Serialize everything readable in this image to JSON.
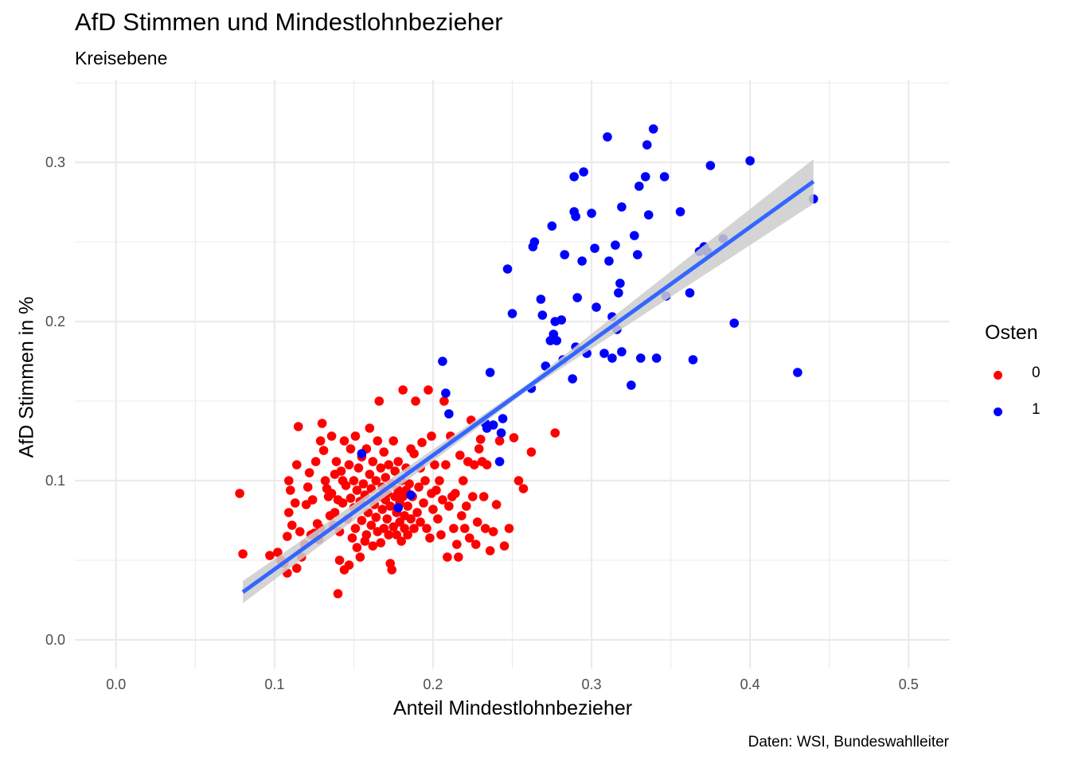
{
  "chart_data": {
    "type": "scatter",
    "title": "AfD Stimmen und Mindestlohnbezieher",
    "subtitle": "Kreisebene",
    "caption": "Daten: WSI, Bundeswahlleiter",
    "xlabel": "Anteil Mindestlohnbezieher",
    "ylabel": "AfD Stimmen in %",
    "xlim": [
      -0.026,
      0.526
    ],
    "ylim": [
      -0.018,
      0.352
    ],
    "xticks": [
      "0.0",
      "0.1",
      "0.2",
      "0.3",
      "0.4",
      "0.5"
    ],
    "yticks": [
      "0.0",
      "0.1",
      "0.2",
      "0.3"
    ],
    "grid": true,
    "legend": {
      "title": "Osten",
      "position": "right",
      "entries": [
        {
          "label": "0",
          "color": "#ff0000"
        },
        {
          "label": "1",
          "color": "#0000ff"
        }
      ]
    },
    "trend": {
      "method": "lm",
      "color": "#3366ff",
      "band_color": "#cccccc",
      "line": [
        [
          0.08,
          0.03
        ],
        [
          0.44,
          0.288
        ]
      ],
      "band_lower": [
        [
          0.08,
          0.023
        ],
        [
          0.26,
          0.157
        ],
        [
          0.44,
          0.274
        ]
      ],
      "band_upper": [
        [
          0.08,
          0.037
        ],
        [
          0.26,
          0.161
        ],
        [
          0.44,
          0.302
        ]
      ]
    },
    "series": [
      {
        "name": "0",
        "color": "#ff0000",
        "points": [
          [
            0.078,
            0.092
          ],
          [
            0.08,
            0.054
          ],
          [
            0.097,
            0.053
          ],
          [
            0.102,
            0.055
          ],
          [
            0.104,
            0.05
          ],
          [
            0.106,
            0.048
          ],
          [
            0.108,
            0.042
          ],
          [
            0.109,
            0.08
          ],
          [
            0.108,
            0.065
          ],
          [
            0.109,
            0.1
          ],
          [
            0.11,
            0.094
          ],
          [
            0.111,
            0.072
          ],
          [
            0.113,
            0.086
          ],
          [
            0.114,
            0.11
          ],
          [
            0.114,
            0.045
          ],
          [
            0.115,
            0.134
          ],
          [
            0.116,
            0.068
          ],
          [
            0.117,
            0.052
          ],
          [
            0.119,
            0.06
          ],
          [
            0.12,
            0.085
          ],
          [
            0.121,
            0.096
          ],
          [
            0.122,
            0.105
          ],
          [
            0.123,
            0.066
          ],
          [
            0.124,
            0.088
          ],
          [
            0.125,
            0.067
          ],
          [
            0.126,
            0.112
          ],
          [
            0.127,
            0.073
          ],
          [
            0.128,
            0.063
          ],
          [
            0.129,
            0.07
          ],
          [
            0.129,
            0.125
          ],
          [
            0.13,
            0.136
          ],
          [
            0.131,
            0.119
          ],
          [
            0.132,
            0.1
          ],
          [
            0.133,
            0.095
          ],
          [
            0.134,
            0.09
          ],
          [
            0.135,
            0.078
          ],
          [
            0.136,
            0.092
          ],
          [
            0.136,
            0.128
          ],
          [
            0.137,
            0.072
          ],
          [
            0.138,
            0.08
          ],
          [
            0.138,
            0.104
          ],
          [
            0.139,
            0.112
          ],
          [
            0.14,
            0.029
          ],
          [
            0.14,
            0.088
          ],
          [
            0.141,
            0.05
          ],
          [
            0.141,
            0.068
          ],
          [
            0.142,
            0.106
          ],
          [
            0.143,
            0.1
          ],
          [
            0.143,
            0.086
          ],
          [
            0.144,
            0.044
          ],
          [
            0.144,
            0.125
          ],
          [
            0.145,
            0.097
          ],
          [
            0.146,
            0.076
          ],
          [
            0.147,
            0.047
          ],
          [
            0.147,
            0.11
          ],
          [
            0.148,
            0.089
          ],
          [
            0.148,
            0.12
          ],
          [
            0.149,
            0.064
          ],
          [
            0.15,
            0.083
          ],
          [
            0.15,
            0.1
          ],
          [
            0.151,
            0.07
          ],
          [
            0.151,
            0.128
          ],
          [
            0.152,
            0.058
          ],
          [
            0.152,
            0.094
          ],
          [
            0.153,
            0.108
          ],
          [
            0.154,
            0.052
          ],
          [
            0.154,
            0.087
          ],
          [
            0.155,
            0.075
          ],
          [
            0.155,
            0.115
          ],
          [
            0.156,
            0.098
          ],
          [
            0.157,
            0.062
          ],
          [
            0.157,
            0.091
          ],
          [
            0.158,
            0.066
          ],
          [
            0.158,
            0.12
          ],
          [
            0.159,
            0.08
          ],
          [
            0.16,
            0.104
          ],
          [
            0.16,
            0.133
          ],
          [
            0.161,
            0.072
          ],
          [
            0.161,
            0.095
          ],
          [
            0.162,
            0.059
          ],
          [
            0.162,
            0.112
          ],
          [
            0.163,
            0.085
          ],
          [
            0.164,
            0.077
          ],
          [
            0.164,
            0.1
          ],
          [
            0.165,
            0.068
          ],
          [
            0.165,
            0.125
          ],
          [
            0.166,
            0.09
          ],
          [
            0.166,
            0.15
          ],
          [
            0.167,
            0.061
          ],
          [
            0.167,
            0.108
          ],
          [
            0.168,
            0.082
          ],
          [
            0.168,
            0.096
          ],
          [
            0.169,
            0.07
          ],
          [
            0.169,
            0.118
          ],
          [
            0.17,
            0.088
          ],
          [
            0.17,
            0.102
          ],
          [
            0.171,
            0.076
          ],
          [
            0.171,
            0.092
          ],
          [
            0.172,
            0.066
          ],
          [
            0.172,
            0.11
          ],
          [
            0.173,
            0.048
          ],
          [
            0.173,
            0.084
          ],
          [
            0.174,
            0.098
          ],
          [
            0.174,
            0.044
          ],
          [
            0.175,
            0.071
          ],
          [
            0.175,
            0.125
          ],
          [
            0.176,
            0.09
          ],
          [
            0.176,
            0.106
          ],
          [
            0.177,
            0.08
          ],
          [
            0.177,
            0.066
          ],
          [
            0.178,
            0.094
          ],
          [
            0.178,
            0.112
          ],
          [
            0.179,
            0.074
          ],
          [
            0.179,
            0.086
          ],
          [
            0.18,
            0.1
          ],
          [
            0.18,
            0.062
          ],
          [
            0.181,
            0.09
          ],
          [
            0.181,
            0.157
          ],
          [
            0.182,
            0.078
          ],
          [
            0.182,
            0.07
          ],
          [
            0.183,
            0.094
          ],
          [
            0.183,
            0.108
          ],
          [
            0.184,
            0.084
          ],
          [
            0.184,
            0.066
          ],
          [
            0.185,
            0.098
          ],
          [
            0.186,
            0.076
          ],
          [
            0.186,
            0.12
          ],
          [
            0.187,
            0.09
          ],
          [
            0.188,
            0.07
          ],
          [
            0.188,
            0.117
          ],
          [
            0.189,
            0.15
          ],
          [
            0.19,
            0.08
          ],
          [
            0.191,
            0.096
          ],
          [
            0.192,
            0.074
          ],
          [
            0.192,
            0.108
          ],
          [
            0.193,
            0.124
          ],
          [
            0.194,
            0.086
          ],
          [
            0.195,
            0.1
          ],
          [
            0.196,
            0.07
          ],
          [
            0.197,
            0.157
          ],
          [
            0.198,
            0.064
          ],
          [
            0.199,
            0.128
          ],
          [
            0.199,
            0.092
          ],
          [
            0.2,
            0.082
          ],
          [
            0.201,
            0.11
          ],
          [
            0.202,
            0.094
          ],
          [
            0.203,
            0.076
          ],
          [
            0.204,
            0.1
          ],
          [
            0.205,
            0.066
          ],
          [
            0.206,
            0.088
          ],
          [
            0.207,
            0.15
          ],
          [
            0.208,
            0.11
          ],
          [
            0.209,
            0.052
          ],
          [
            0.21,
            0.084
          ],
          [
            0.211,
            0.128
          ],
          [
            0.212,
            0.09
          ],
          [
            0.213,
            0.07
          ],
          [
            0.214,
            0.092
          ],
          [
            0.215,
            0.06
          ],
          [
            0.216,
            0.052
          ],
          [
            0.217,
            0.116
          ],
          [
            0.218,
            0.078
          ],
          [
            0.219,
            0.1
          ],
          [
            0.22,
            0.07
          ],
          [
            0.221,
            0.084
          ],
          [
            0.222,
            0.112
          ],
          [
            0.223,
            0.064
          ],
          [
            0.224,
            0.138
          ],
          [
            0.225,
            0.09
          ],
          [
            0.226,
            0.11
          ],
          [
            0.227,
            0.06
          ],
          [
            0.228,
            0.074
          ],
          [
            0.229,
            0.12
          ],
          [
            0.23,
            0.126
          ],
          [
            0.231,
            0.112
          ],
          [
            0.232,
            0.09
          ],
          [
            0.233,
            0.07
          ],
          [
            0.234,
            0.11
          ],
          [
            0.236,
            0.056
          ],
          [
            0.238,
            0.068
          ],
          [
            0.24,
            0.085
          ],
          [
            0.242,
            0.125
          ],
          [
            0.245,
            0.059
          ],
          [
            0.248,
            0.07
          ],
          [
            0.251,
            0.127
          ],
          [
            0.254,
            0.1
          ],
          [
            0.257,
            0.095
          ],
          [
            0.262,
            0.118
          ],
          [
            0.277,
            0.13
          ]
        ]
      },
      {
        "name": "1",
        "color": "#0000ff",
        "points": [
          [
            0.155,
            0.117
          ],
          [
            0.178,
            0.083
          ],
          [
            0.186,
            0.091
          ],
          [
            0.206,
            0.175
          ],
          [
            0.208,
            0.155
          ],
          [
            0.21,
            0.142
          ],
          [
            0.233,
            0.136
          ],
          [
            0.234,
            0.133
          ],
          [
            0.236,
            0.168
          ],
          [
            0.238,
            0.135
          ],
          [
            0.242,
            0.112
          ],
          [
            0.243,
            0.13
          ],
          [
            0.244,
            0.139
          ],
          [
            0.247,
            0.233
          ],
          [
            0.25,
            0.205
          ],
          [
            0.262,
            0.158
          ],
          [
            0.263,
            0.247
          ],
          [
            0.264,
            0.25
          ],
          [
            0.268,
            0.214
          ],
          [
            0.269,
            0.204
          ],
          [
            0.271,
            0.172
          ],
          [
            0.274,
            0.188
          ],
          [
            0.275,
            0.26
          ],
          [
            0.276,
            0.192
          ],
          [
            0.277,
            0.2
          ],
          [
            0.278,
            0.188
          ],
          [
            0.281,
            0.201
          ],
          [
            0.282,
            0.176
          ],
          [
            0.283,
            0.242
          ],
          [
            0.288,
            0.164
          ],
          [
            0.289,
            0.269
          ],
          [
            0.289,
            0.291
          ],
          [
            0.29,
            0.266
          ],
          [
            0.29,
            0.184
          ],
          [
            0.291,
            0.215
          ],
          [
            0.294,
            0.238
          ],
          [
            0.295,
            0.294
          ],
          [
            0.297,
            0.18
          ],
          [
            0.3,
            0.268
          ],
          [
            0.302,
            0.246
          ],
          [
            0.303,
            0.209
          ],
          [
            0.308,
            0.18
          ],
          [
            0.31,
            0.316
          ],
          [
            0.311,
            0.238
          ],
          [
            0.313,
            0.203
          ],
          [
            0.313,
            0.177
          ],
          [
            0.315,
            0.248
          ],
          [
            0.316,
            0.195
          ],
          [
            0.317,
            0.218
          ],
          [
            0.318,
            0.224
          ],
          [
            0.319,
            0.272
          ],
          [
            0.319,
            0.181
          ],
          [
            0.325,
            0.16
          ],
          [
            0.327,
            0.254
          ],
          [
            0.329,
            0.242
          ],
          [
            0.33,
            0.285
          ],
          [
            0.331,
            0.177
          ],
          [
            0.334,
            0.291
          ],
          [
            0.335,
            0.311
          ],
          [
            0.336,
            0.267
          ],
          [
            0.339,
            0.321
          ],
          [
            0.341,
            0.177
          ],
          [
            0.346,
            0.291
          ],
          [
            0.347,
            0.216
          ],
          [
            0.356,
            0.269
          ],
          [
            0.362,
            0.218
          ],
          [
            0.364,
            0.176
          ],
          [
            0.368,
            0.244
          ],
          [
            0.37,
            0.245
          ],
          [
            0.371,
            0.247
          ],
          [
            0.373,
            0.244
          ],
          [
            0.375,
            0.298
          ],
          [
            0.383,
            0.252
          ],
          [
            0.39,
            0.199
          ],
          [
            0.4,
            0.301
          ],
          [
            0.43,
            0.168
          ],
          [
            0.44,
            0.277
          ]
        ]
      }
    ]
  }
}
